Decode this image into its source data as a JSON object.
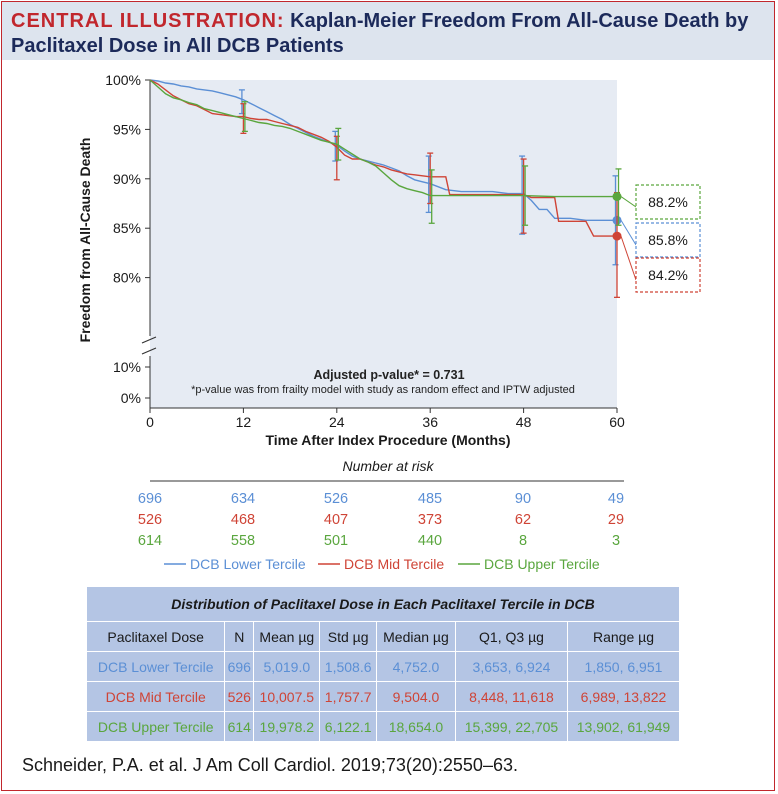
{
  "title": {
    "label": "CENTRAL ILLUSTRATION:",
    "line1": "Kaplan-Meier Freedom From All-Cause Death by",
    "line2": "Paclitaxel Dose in All DCB Patients"
  },
  "colors": {
    "lower": "#5b8fd5",
    "mid": "#cf4436",
    "upper": "#5aa63e",
    "plot_bg": "#e6ebf3",
    "accent": "#c1272d",
    "navy": "#1c2a5a"
  },
  "chart_data": {
    "type": "line",
    "title": "Kaplan-Meier Freedom From All-Cause Death by Paclitaxel Dose in All DCB Patients",
    "xlabel": "Time After Index Procedure (Months)",
    "ylabel": "Freedom from All-Cause Death",
    "xlim": [
      0,
      60
    ],
    "ylim": [
      75,
      100
    ],
    "yticks": [
      "100%",
      "95%",
      "90%",
      "85%",
      "80%"
    ],
    "yticks_lower": [
      "10%",
      "0%"
    ],
    "xticks": [
      "0",
      "12",
      "24",
      "36",
      "48",
      "60"
    ],
    "xtick_values": [
      0,
      12,
      24,
      36,
      48,
      60
    ],
    "annotation": "Adjusted p-value* = 0.731",
    "footnote": "*p-value was from frailty model with study as random effect and IPTW adjusted",
    "series": [
      {
        "key": "lower",
        "name": "DCB Lower Tercile",
        "final_label": "85.8%",
        "final": 85.8,
        "points": [
          [
            0,
            100
          ],
          [
            1,
            99.9
          ],
          [
            2,
            99.7
          ],
          [
            3,
            99.6
          ],
          [
            4,
            99.4
          ],
          [
            5,
            99.3
          ],
          [
            6,
            99.1
          ],
          [
            7,
            99.0
          ],
          [
            8,
            98.9
          ],
          [
            9,
            98.7
          ],
          [
            10,
            98.5
          ],
          [
            11,
            98.3
          ],
          [
            12,
            98.0
          ],
          [
            13,
            97.6
          ],
          [
            14,
            97.2
          ],
          [
            15,
            96.8
          ],
          [
            16,
            96.4
          ],
          [
            17,
            96.0
          ],
          [
            18,
            95.5
          ],
          [
            19,
            95.1
          ],
          [
            20,
            94.7
          ],
          [
            21,
            94.3
          ],
          [
            22,
            94.0
          ],
          [
            23,
            93.7
          ],
          [
            24,
            93.4
          ],
          [
            25,
            92.8
          ],
          [
            26,
            92.3
          ],
          [
            27,
            92.0
          ],
          [
            28,
            91.8
          ],
          [
            29,
            91.6
          ],
          [
            30,
            91.4
          ],
          [
            31,
            91.1
          ],
          [
            32,
            90.8
          ],
          [
            33,
            90.3
          ],
          [
            34,
            89.9
          ],
          [
            35,
            89.7
          ],
          [
            36,
            89.5
          ],
          [
            38,
            88.9
          ],
          [
            40,
            88.7
          ],
          [
            44,
            88.7
          ],
          [
            46,
            88.5
          ],
          [
            48,
            88.5
          ],
          [
            49,
            87.8
          ],
          [
            50,
            86.9
          ],
          [
            51,
            86.9
          ],
          [
            52,
            86.0
          ],
          [
            54,
            86.0
          ],
          [
            56,
            85.8
          ],
          [
            60,
            85.8
          ]
        ],
        "ci": [
          [
            12,
            99.0,
            96.6
          ],
          [
            24,
            94.8,
            91.8
          ],
          [
            36,
            92.3,
            86.6
          ],
          [
            48,
            92.3,
            84.4
          ],
          [
            60,
            90.3,
            81.3
          ]
        ]
      },
      {
        "key": "mid",
        "name": "DCB Mid Tercile",
        "final_label": "84.2%",
        "final": 84.2,
        "points": [
          [
            0,
            100
          ],
          [
            1,
            99.6
          ],
          [
            2,
            99.0
          ],
          [
            3,
            98.4
          ],
          [
            4,
            98.0
          ],
          [
            5,
            97.6
          ],
          [
            6,
            97.4
          ],
          [
            7,
            97.0
          ],
          [
            8,
            96.6
          ],
          [
            9,
            96.5
          ],
          [
            10,
            96.4
          ],
          [
            11,
            96.3
          ],
          [
            12,
            96.3
          ],
          [
            13,
            96.1
          ],
          [
            14,
            96.0
          ],
          [
            15,
            96.0
          ],
          [
            16,
            95.8
          ],
          [
            17,
            95.6
          ],
          [
            18,
            95.4
          ],
          [
            19,
            95.2
          ],
          [
            20,
            94.8
          ],
          [
            21,
            94.5
          ],
          [
            22,
            94.2
          ],
          [
            23,
            93.8
          ],
          [
            24,
            93.2
          ],
          [
            25,
            92.4
          ],
          [
            26,
            92.0
          ],
          [
            27,
            92.0
          ],
          [
            28,
            91.7
          ],
          [
            29,
            91.4
          ],
          [
            30,
            91.2
          ],
          [
            31,
            90.9
          ],
          [
            32,
            90.7
          ],
          [
            33,
            90.5
          ],
          [
            34,
            90.4
          ],
          [
            35,
            90.3
          ],
          [
            36,
            90.2
          ],
          [
            38,
            90.2
          ],
          [
            38.5,
            88.4
          ],
          [
            44,
            88.4
          ],
          [
            48,
            88.4
          ],
          [
            49,
            88.1
          ],
          [
            52,
            88.1
          ],
          [
            52.5,
            85.7
          ],
          [
            56,
            85.7
          ],
          [
            57,
            84.2
          ],
          [
            60,
            84.2
          ]
        ],
        "ci": [
          [
            12,
            97.6,
            94.6
          ],
          [
            24,
            94.3,
            89.9
          ],
          [
            36,
            92.6,
            87.5
          ],
          [
            48,
            92.0,
            84.5
          ],
          [
            60,
            88.6,
            78.0
          ]
        ]
      },
      {
        "key": "upper",
        "name": "DCB Upper Tercile",
        "final_label": "88.2%",
        "final": 88.2,
        "points": [
          [
            0,
            100
          ],
          [
            1,
            99.3
          ],
          [
            2,
            98.6
          ],
          [
            3,
            98.2
          ],
          [
            4,
            98.0
          ],
          [
            5,
            97.7
          ],
          [
            6,
            97.5
          ],
          [
            7,
            97.1
          ],
          [
            8,
            96.9
          ],
          [
            9,
            96.7
          ],
          [
            10,
            96.5
          ],
          [
            11,
            96.3
          ],
          [
            12,
            96.1
          ],
          [
            13,
            95.9
          ],
          [
            14,
            95.7
          ],
          [
            15,
            95.6
          ],
          [
            16,
            95.4
          ],
          [
            17,
            95.3
          ],
          [
            18,
            95.1
          ],
          [
            19,
            94.8
          ],
          [
            20,
            94.5
          ],
          [
            21,
            94.2
          ],
          [
            22,
            93.9
          ],
          [
            23,
            93.7
          ],
          [
            24,
            93.5
          ],
          [
            25,
            93.0
          ],
          [
            26,
            92.5
          ],
          [
            27,
            92.0
          ],
          [
            28,
            91.7
          ],
          [
            29,
            91.3
          ],
          [
            30,
            90.6
          ],
          [
            31,
            89.9
          ],
          [
            32,
            89.3
          ],
          [
            33,
            89.0
          ],
          [
            34,
            88.8
          ],
          [
            35,
            88.6
          ],
          [
            36,
            88.3
          ],
          [
            40,
            88.3
          ],
          [
            48,
            88.3
          ],
          [
            52,
            88.2
          ],
          [
            60,
            88.2
          ]
        ],
        "ci": [
          [
            12,
            97.8,
            94.8
          ],
          [
            24,
            95.1,
            91.9
          ],
          [
            36,
            90.9,
            85.5
          ],
          [
            48,
            91.3,
            85.3
          ],
          [
            60,
            91.0,
            85.3
          ]
        ]
      }
    ]
  },
  "risk_table": {
    "title": "Number at risk",
    "rows": [
      {
        "key": "lower",
        "values": [
          "696",
          "634",
          "526",
          "485",
          "90",
          "49"
        ]
      },
      {
        "key": "mid",
        "values": [
          "526",
          "468",
          "407",
          "373",
          "62",
          "29"
        ]
      },
      {
        "key": "upper",
        "values": [
          "614",
          "558",
          "501",
          "440",
          "8",
          "3"
        ]
      }
    ]
  },
  "legend": [
    {
      "key": "lower",
      "label": "DCB Lower Tercile"
    },
    {
      "key": "mid",
      "label": "DCB Mid Tercile"
    },
    {
      "key": "upper",
      "label": "DCB Upper Tercile"
    }
  ],
  "dose_table": {
    "caption": "Distribution of Paclitaxel Dose in Each Paclitaxel Tercile in DCB",
    "headers": [
      "Paclitaxel Dose",
      "N",
      "Mean µg",
      "Std µg",
      "Median µg",
      "Q1, Q3 µg",
      "Range µg"
    ],
    "rows": [
      {
        "key": "lower",
        "cells": [
          "DCB Lower Tercile",
          "696",
          "5,019.0",
          "1,508.6",
          "4,752.0",
          "3,653, 6,924",
          "1,850, 6,951"
        ]
      },
      {
        "key": "mid",
        "cells": [
          "DCB Mid Tercile",
          "526",
          "10,007.5",
          "1,757.7",
          "9,504.0",
          "8,448, 11,618",
          "6,989, 13,822"
        ]
      },
      {
        "key": "upper",
        "cells": [
          "DCB Upper Tercile",
          "614",
          "19,978.2",
          "6,122.1",
          "18,654.0",
          "15,399, 22,705",
          "13,902, 61,949"
        ]
      }
    ]
  },
  "citation": "Schneider, P.A. et al. J Am Coll Cardiol. 2019;73(20):2550–63."
}
